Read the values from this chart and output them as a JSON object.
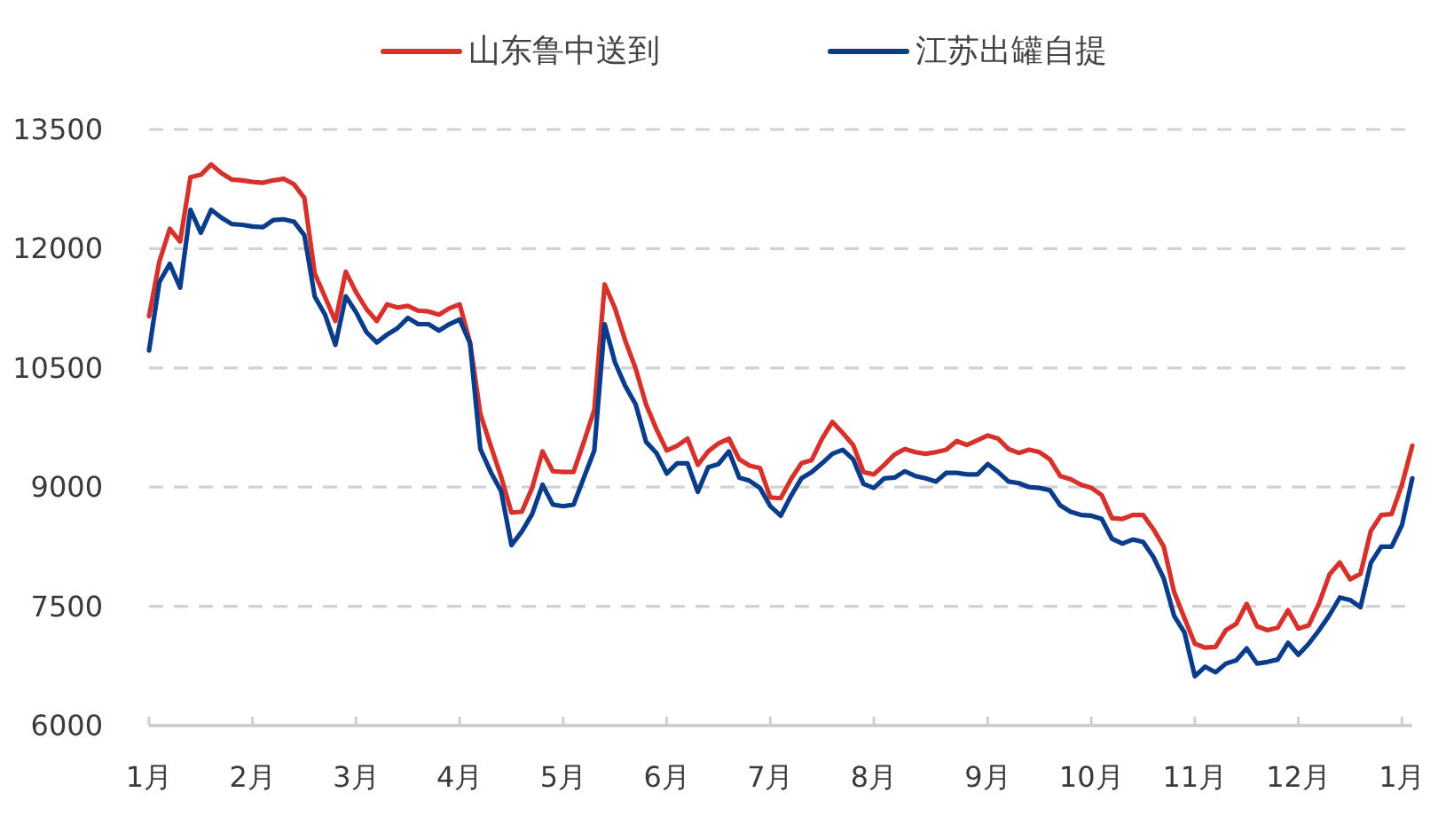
{
  "chart_data": {
    "type": "line",
    "legend": "top",
    "grid": "y",
    "categories": [
      "1月",
      null,
      null,
      null,
      null,
      null,
      null,
      null,
      null,
      null,
      "2月",
      null,
      null,
      null,
      null,
      null,
      null,
      null,
      null,
      null,
      "3月",
      null,
      null,
      null,
      null,
      null,
      null,
      null,
      null,
      null,
      "4月",
      null,
      null,
      null,
      null,
      null,
      null,
      null,
      null,
      null,
      "5月",
      null,
      null,
      null,
      null,
      null,
      null,
      null,
      null,
      null,
      "6月",
      null,
      null,
      null,
      null,
      null,
      null,
      null,
      null,
      null,
      "7月",
      null,
      null,
      null,
      null,
      null,
      null,
      null,
      null,
      null,
      "8月",
      null,
      null,
      null,
      null,
      null,
      null,
      null,
      null,
      null,
      null,
      "9月",
      null,
      null,
      null,
      null,
      null,
      null,
      null,
      null,
      null,
      "10月",
      null,
      null,
      null,
      null,
      null,
      null,
      null,
      null,
      null,
      "11月",
      null,
      null,
      null,
      null,
      null,
      null,
      null,
      null,
      null,
      "12月",
      null,
      null,
      null,
      null,
      null,
      null,
      null,
      null,
      null,
      "1月",
      null
    ],
    "ylim": [
      6000,
      13500
    ],
    "yticks": [
      6000,
      7500,
      9000,
      10500,
      12000,
      13500
    ],
    "series": [
      {
        "name": "山东鲁中送到",
        "color": "#d6312a",
        "values": [
          11150,
          11840,
          12250,
          12090,
          12900,
          12930,
          13060,
          12950,
          12870,
          12860,
          12840,
          12830,
          12860,
          12880,
          12810,
          12640,
          11690,
          11390,
          11090,
          11710,
          11450,
          11240,
          11090,
          11300,
          11260,
          11280,
          11220,
          11210,
          11170,
          11250,
          11300,
          10820,
          9920,
          9520,
          9130,
          8680,
          8690,
          8990,
          9450,
          9200,
          9190,
          9190,
          9570,
          9970,
          11550,
          11250,
          10840,
          10490,
          10040,
          9730,
          9460,
          9520,
          9610,
          9280,
          9450,
          9550,
          9610,
          9350,
          9270,
          9240,
          8870,
          8860,
          9100,
          9300,
          9340,
          9610,
          9820,
          9680,
          9530,
          9190,
          9160,
          9280,
          9410,
          9480,
          9440,
          9420,
          9440,
          9470,
          9580,
          9530,
          9590,
          9650,
          9610,
          9480,
          9430,
          9470,
          9440,
          9350,
          9140,
          9100,
          9030,
          8990,
          8900,
          8610,
          8600,
          8650,
          8650,
          8470,
          8250,
          7680,
          7350,
          7030,
          6980,
          6990,
          7200,
          7280,
          7530,
          7250,
          7200,
          7230,
          7450,
          7220,
          7260,
          7540,
          7900,
          8050,
          7840,
          7910,
          8450,
          8650,
          8660,
          9030,
          9520
        ]
      },
      {
        "name": "江苏出罐自提",
        "color": "#0a3c8c",
        "values": [
          10720,
          11580,
          11810,
          11510,
          12490,
          12200,
          12490,
          12390,
          12310,
          12300,
          12280,
          12270,
          12360,
          12370,
          12340,
          12170,
          11400,
          11170,
          10790,
          11400,
          11200,
          10950,
          10820,
          10920,
          11000,
          11130,
          11050,
          11050,
          10970,
          11050,
          11110,
          10810,
          9480,
          9190,
          8950,
          8270,
          8440,
          8660,
          9030,
          8780,
          8760,
          8780,
          9120,
          9460,
          11050,
          10570,
          10270,
          10040,
          9570,
          9430,
          9170,
          9300,
          9300,
          8940,
          9250,
          9290,
          9450,
          9120,
          9080,
          8990,
          8760,
          8640,
          8890,
          9110,
          9190,
          9300,
          9420,
          9470,
          9350,
          9040,
          8990,
          9110,
          9120,
          9200,
          9140,
          9110,
          9070,
          9180,
          9180,
          9160,
          9160,
          9290,
          9190,
          9070,
          9050,
          9000,
          8990,
          8960,
          8770,
          8690,
          8650,
          8640,
          8600,
          8350,
          8290,
          8340,
          8310,
          8120,
          7850,
          7380,
          7170,
          6620,
          6740,
          6670,
          6780,
          6820,
          6970,
          6780,
          6800,
          6830,
          7040,
          6890,
          7030,
          7200,
          7390,
          7610,
          7580,
          7490,
          8050,
          8250,
          8250,
          8520,
          9110
        ]
      }
    ]
  }
}
